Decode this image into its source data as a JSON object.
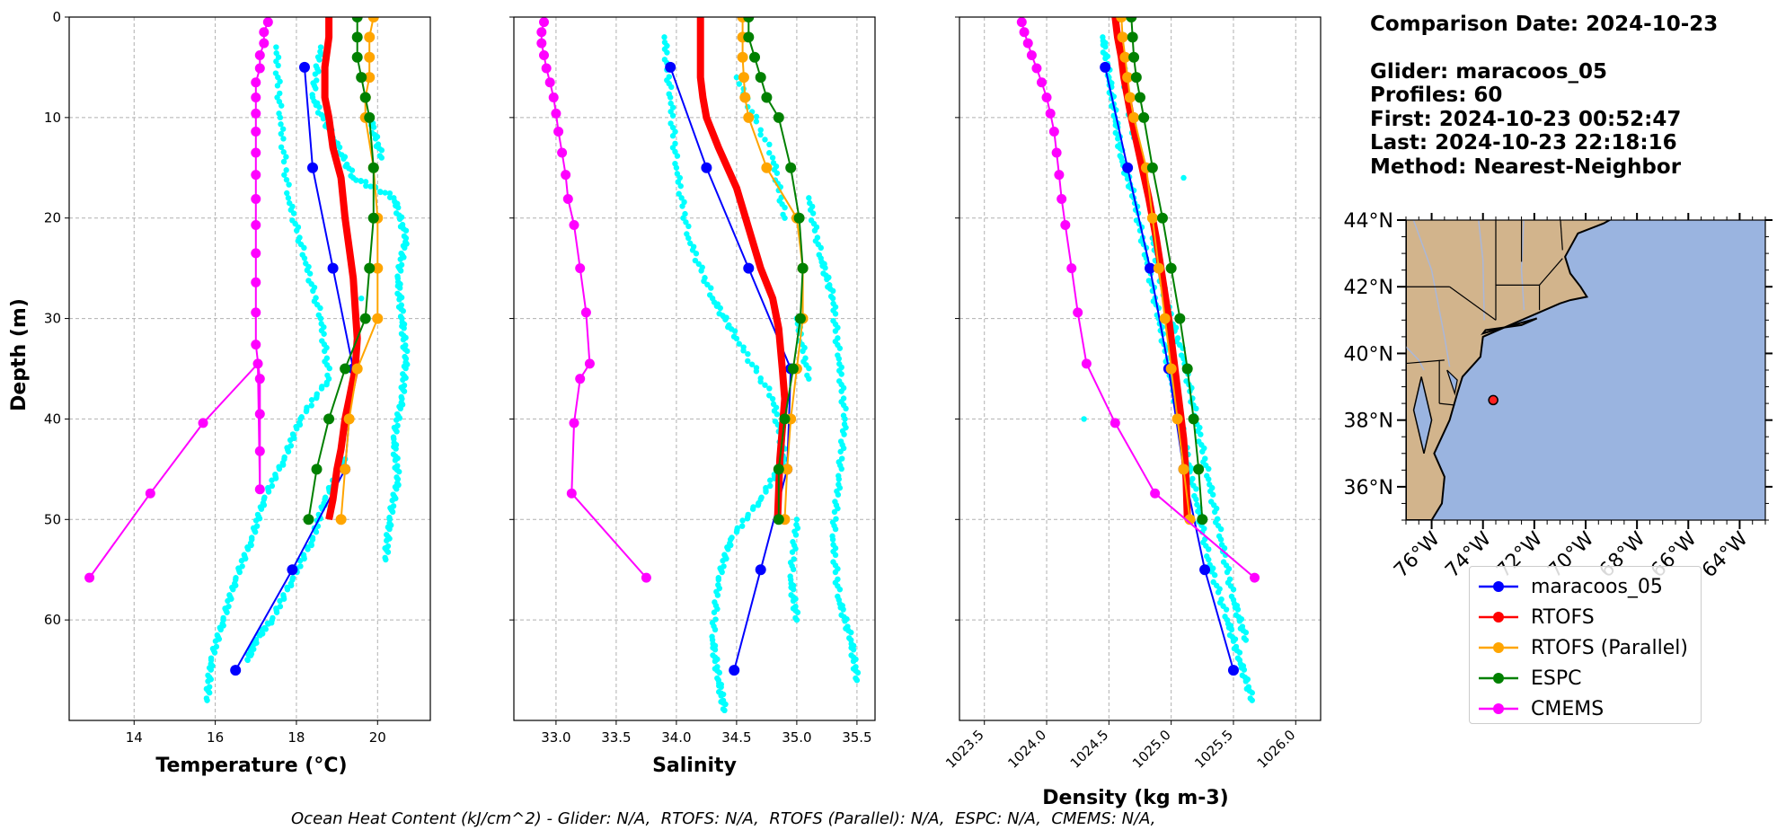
{
  "chart_data": [
    {
      "type": "line",
      "xlabel": "Temperature (°C)",
      "ylabel": "Depth (m)",
      "xlim": [
        12.4,
        21.3
      ],
      "ylim": [
        70,
        0
      ],
      "x_ticks": [
        "14",
        "16",
        "18",
        "20"
      ],
      "y_ticks": [
        "0",
        "10",
        "20",
        "30",
        "40",
        "50",
        "60"
      ],
      "grid": true,
      "scatter_color": "#00ffff",
      "glider_scatter": [
        [
          18.6,
          3
        ],
        [
          18.4,
          8
        ],
        [
          18.9,
          12
        ],
        [
          19.4,
          16
        ],
        [
          20.4,
          18
        ],
        [
          20.7,
          22
        ],
        [
          20.5,
          26
        ],
        [
          20.6,
          30
        ],
        [
          20.7,
          34
        ],
        [
          20.6,
          38
        ],
        [
          20.4,
          42
        ],
        [
          20.5,
          46
        ],
        [
          20.3,
          50
        ],
        [
          20.2,
          54
        ],
        [
          17.5,
          3
        ],
        [
          17.6,
          10
        ],
        [
          17.8,
          18
        ],
        [
          18.2,
          24
        ],
        [
          18.6,
          30
        ],
        [
          18.8,
          36
        ],
        [
          18.1,
          40
        ],
        [
          17.7,
          44
        ],
        [
          17.2,
          48
        ],
        [
          16.9,
          52
        ],
        [
          16.5,
          56
        ],
        [
          16.2,
          60
        ],
        [
          15.9,
          64
        ],
        [
          15.8,
          68
        ],
        [
          19.8,
          10
        ],
        [
          20.1,
          14
        ],
        [
          19.6,
          28
        ],
        [
          19.2,
          44
        ],
        [
          18.7,
          48
        ],
        [
          18.4,
          52
        ],
        [
          17.9,
          56
        ],
        [
          17.4,
          60
        ],
        [
          17.0,
          62
        ],
        [
          16.8,
          64
        ]
      ],
      "series": [
        {
          "name": "maracoos_05",
          "color": "#0000ff",
          "x": [
            18.2,
            18.4,
            18.9,
            19.4,
            19.2,
            17.9,
            16.5
          ],
          "y": [
            5,
            15,
            25,
            35,
            45,
            55,
            65
          ]
        },
        {
          "name": "RTOFS",
          "color": "#ff0000",
          "x": [
            18.8,
            18.8,
            18.7,
            18.7,
            18.8,
            18.9,
            19.1,
            19.2,
            19.3,
            19.4,
            19.45,
            19.5,
            19.45,
            19.3,
            19.2,
            19.1,
            19.0,
            18.9,
            18.8
          ],
          "y": [
            0,
            2,
            5,
            8,
            10,
            13,
            16,
            20,
            23,
            26,
            29,
            32,
            35,
            38,
            40,
            43,
            45,
            48,
            50
          ]
        },
        {
          "name": "RTOFS (Parallel)",
          "color": "#ffa500",
          "x": [
            19.9,
            19.8,
            19.8,
            19.8,
            19.7,
            19.7,
            19.9,
            20.0,
            20.0,
            20.0,
            19.5,
            19.3,
            19.2,
            19.1
          ],
          "y": [
            0,
            2,
            4,
            6,
            8,
            10,
            15,
            20,
            25,
            30,
            35,
            40,
            45,
            50
          ]
        },
        {
          "name": "ESPC",
          "color": "#008000",
          "x": [
            19.5,
            19.5,
            19.5,
            19.6,
            19.7,
            19.8,
            19.9,
            19.9,
            19.8,
            19.7,
            19.2,
            18.8,
            18.5,
            18.3
          ],
          "y": [
            0,
            2,
            4,
            6,
            8,
            10,
            15,
            20,
            25,
            30,
            35,
            40,
            45,
            50
          ]
        },
        {
          "name": "CMEMS",
          "color": "#ff00ff",
          "x": [
            17.3,
            17.2,
            17.2,
            17.1,
            17.1,
            17.0,
            17.0,
            17.0,
            17.0,
            17.0,
            17.0,
            17.0,
            17.0,
            17.0,
            17.0,
            17.0,
            17.0,
            17.1,
            17.1,
            17.1,
            17.1,
            17.05,
            15.7,
            14.4,
            12.9
          ],
          "y": [
            0.5,
            1.5,
            2.6,
            3.8,
            5.1,
            6.5,
            8.0,
            9.6,
            11.4,
            13.5,
            15.7,
            18.1,
            20.7,
            23.5,
            26.4,
            29.4,
            32.6,
            36.0,
            39.5,
            43.2,
            47.0,
            34.5,
            40.4,
            47.4,
            55.8
          ]
        }
      ]
    },
    {
      "type": "line",
      "xlabel": "Salinity",
      "xlim": [
        32.65,
        35.65
      ],
      "ylim": [
        70,
        0
      ],
      "x_ticks": [
        "33.0",
        "33.5",
        "34.0",
        "34.5",
        "35.0",
        "35.5"
      ],
      "grid": true,
      "scatter_color": "#00ffff",
      "glider_scatter": [
        [
          33.9,
          2
        ],
        [
          33.95,
          8
        ],
        [
          34.0,
          15
        ],
        [
          34.1,
          22
        ],
        [
          34.3,
          28
        ],
        [
          34.5,
          32
        ],
        [
          34.8,
          38
        ],
        [
          34.9,
          44
        ],
        [
          34.7,
          48
        ],
        [
          34.45,
          52
        ],
        [
          34.35,
          56
        ],
        [
          34.3,
          62
        ],
        [
          34.35,
          66
        ],
        [
          34.4,
          69
        ],
        [
          35.1,
          18
        ],
        [
          35.2,
          24
        ],
        [
          35.3,
          28
        ],
        [
          35.35,
          34
        ],
        [
          35.4,
          40
        ],
        [
          35.35,
          46
        ],
        [
          35.3,
          52
        ],
        [
          35.35,
          58
        ],
        [
          35.45,
          62
        ],
        [
          35.5,
          66
        ],
        [
          34.5,
          6
        ],
        [
          34.8,
          14
        ],
        [
          34.9,
          20
        ],
        [
          35.0,
          30
        ],
        [
          35.1,
          36
        ],
        [
          35.0,
          50
        ],
        [
          34.95,
          56
        ],
        [
          35.0,
          60
        ]
      ],
      "series": [
        {
          "name": "maracoos_05",
          "color": "#0000ff",
          "x": [
            33.95,
            34.25,
            34.6,
            34.95,
            34.92,
            34.7,
            34.48
          ],
          "y": [
            5,
            15,
            25,
            35,
            45,
            55,
            65
          ]
        },
        {
          "name": "RTOFS",
          "color": "#ff0000",
          "x": [
            34.2,
            34.2,
            34.2,
            34.2,
            34.22,
            34.25,
            34.35,
            34.5,
            34.6,
            34.7,
            34.8,
            34.85,
            34.88,
            34.9,
            34.88,
            34.86,
            34.85,
            34.84
          ],
          "y": [
            0,
            2,
            4,
            6,
            8,
            10,
            13,
            17,
            21,
            25,
            28,
            31,
            35,
            38,
            41,
            44,
            47,
            50
          ]
        },
        {
          "name": "RTOFS (Parallel)",
          "color": "#ffa500",
          "x": [
            34.55,
            34.55,
            34.55,
            34.56,
            34.57,
            34.6,
            34.75,
            35.0,
            35.05,
            35.05,
            35.0,
            34.95,
            34.92,
            34.9
          ],
          "y": [
            0,
            2,
            4,
            6,
            8,
            10,
            15,
            20,
            25,
            30,
            35,
            40,
            45,
            50
          ]
        },
        {
          "name": "ESPC",
          "color": "#008000",
          "x": [
            34.6,
            34.6,
            34.65,
            34.7,
            34.75,
            34.85,
            34.95,
            35.02,
            35.05,
            35.03,
            34.97,
            34.9,
            34.85,
            34.85
          ],
          "y": [
            0,
            2,
            4,
            6,
            8,
            10,
            15,
            20,
            25,
            30,
            35,
            40,
            45,
            50
          ]
        },
        {
          "name": "CMEMS",
          "color": "#ff00ff",
          "x": [
            32.9,
            32.88,
            32.88,
            32.9,
            32.92,
            32.95,
            32.98,
            33.0,
            33.02,
            33.05,
            33.08,
            33.1,
            33.15,
            33.2,
            33.25,
            33.28,
            33.2,
            33.15,
            33.13,
            33.75
          ],
          "y": [
            0.5,
            1.5,
            2.6,
            3.8,
            5.1,
            6.5,
            8.0,
            9.6,
            11.4,
            13.5,
            15.7,
            18.1,
            20.7,
            25.0,
            29.4,
            34.5,
            36.0,
            40.4,
            47.4,
            55.8
          ]
        }
      ]
    },
    {
      "type": "line",
      "xlabel": "Density (kg m-3)",
      "xlim": [
        1023.3,
        1026.2
      ],
      "ylim": [
        70,
        0
      ],
      "x_ticks": [
        "1023.5",
        "1024.0",
        "1024.5",
        "1025.0",
        "1025.5",
        "1026.0"
      ],
      "grid": true,
      "scatter_color": "#00ffff",
      "glider_scatter": [
        [
          1024.45,
          2
        ],
        [
          1024.5,
          6
        ],
        [
          1024.55,
          10
        ],
        [
          1024.6,
          14
        ],
        [
          1024.7,
          18
        ],
        [
          1024.8,
          24
        ],
        [
          1024.9,
          30
        ],
        [
          1025.0,
          36
        ],
        [
          1025.1,
          42
        ],
        [
          1025.2,
          48
        ],
        [
          1025.3,
          54
        ],
        [
          1025.45,
          60
        ],
        [
          1025.55,
          64
        ],
        [
          1025.65,
          68
        ],
        [
          1024.6,
          4
        ],
        [
          1024.7,
          12
        ],
        [
          1024.85,
          22
        ],
        [
          1024.95,
          28
        ],
        [
          1025.1,
          34
        ],
        [
          1025.2,
          40
        ],
        [
          1025.3,
          46
        ],
        [
          1025.4,
          52
        ],
        [
          1025.5,
          58
        ],
        [
          1025.6,
          62
        ],
        [
          1024.3,
          40
        ],
        [
          1025.1,
          16
        ]
      ],
      "series": [
        {
          "name": "maracoos_05",
          "color": "#0000ff",
          "x": [
            1024.47,
            1024.65,
            1024.83,
            1024.98,
            1025.1,
            1025.27,
            1025.5
          ],
          "y": [
            5,
            15,
            25,
            35,
            45,
            55,
            65
          ]
        },
        {
          "name": "RTOFS",
          "color": "#ff0000",
          "x": [
            1024.55,
            1024.57,
            1024.6,
            1024.62,
            1024.65,
            1024.68,
            1024.75,
            1024.82,
            1024.88,
            1024.93,
            1024.98,
            1025.02,
            1025.06,
            1025.1,
            1025.12,
            1025.13
          ],
          "y": [
            0,
            2,
            4,
            6,
            8,
            10,
            14,
            18,
            22,
            26,
            30,
            34,
            38,
            42,
            46,
            50
          ]
        },
        {
          "name": "RTOFS (Parallel)",
          "color": "#ffa500",
          "x": [
            1024.6,
            1024.61,
            1024.63,
            1024.65,
            1024.67,
            1024.7,
            1024.8,
            1024.85,
            1024.9,
            1024.95,
            1025.0,
            1025.05,
            1025.1,
            1025.15
          ],
          "y": [
            0,
            2,
            4,
            6,
            8,
            10,
            15,
            20,
            25,
            30,
            35,
            40,
            45,
            50
          ]
        },
        {
          "name": "ESPC",
          "color": "#008000",
          "x": [
            1024.68,
            1024.69,
            1024.7,
            1024.72,
            1024.75,
            1024.78,
            1024.85,
            1024.93,
            1025.0,
            1025.07,
            1025.13,
            1025.18,
            1025.22,
            1025.25
          ],
          "y": [
            0,
            2,
            4,
            6,
            8,
            10,
            15,
            20,
            25,
            30,
            35,
            40,
            45,
            50
          ]
        },
        {
          "name": "CMEMS",
          "color": "#ff00ff",
          "x": [
            1023.8,
            1023.82,
            1023.85,
            1023.88,
            1023.92,
            1023.96,
            1024.0,
            1024.03,
            1024.06,
            1024.08,
            1024.1,
            1024.12,
            1024.15,
            1024.2,
            1024.25,
            1024.32,
            1024.55,
            1024.87,
            1025.67
          ],
          "y": [
            0.5,
            1.5,
            2.6,
            3.8,
            5.1,
            6.5,
            8.0,
            9.6,
            11.4,
            13.5,
            15.7,
            18.1,
            20.7,
            25.0,
            29.4,
            34.5,
            40.4,
            47.4,
            55.8
          ]
        }
      ]
    },
    {
      "type": "map",
      "x_ticks": [
        "76°W",
        "74°W",
        "72°W",
        "70°W",
        "68°W",
        "66°W",
        "64°W"
      ],
      "y_ticks": [
        "44°N",
        "42°N",
        "40°N",
        "38°N",
        "36°N"
      ],
      "xlim": [
        -77,
        -63
      ],
      "ylim": [
        35,
        44
      ],
      "land_color": "#d2b48c",
      "ocean_color": "#9ab4e0",
      "glider_position": {
        "lon": -73.6,
        "lat": 38.6
      }
    }
  ],
  "info": {
    "comparison": "Comparison Date: 2024-10-23",
    "glider": "Glider: maracoos_05",
    "profiles": "Profiles: 60",
    "first": "First: 2024-10-23 00:52:47",
    "last": "Last: 2024-10-23 22:18:16",
    "method": "Method: Nearest-Neighbor"
  },
  "legend": [
    {
      "label": "maracoos_05",
      "color": "#0000ff"
    },
    {
      "label": "RTOFS",
      "color": "#ff0000"
    },
    {
      "label": "RTOFS (Parallel)",
      "color": "#ffa500"
    },
    {
      "label": "ESPC",
      "color": "#008000"
    },
    {
      "label": "CMEMS",
      "color": "#ff00ff"
    }
  ],
  "footer": "Ocean Heat Content (kJ/cm^2) - Glider: N/A,  RTOFS: N/A,  RTOFS (Parallel): N/A,  ESPC: N/A,  CMEMS: N/A,"
}
